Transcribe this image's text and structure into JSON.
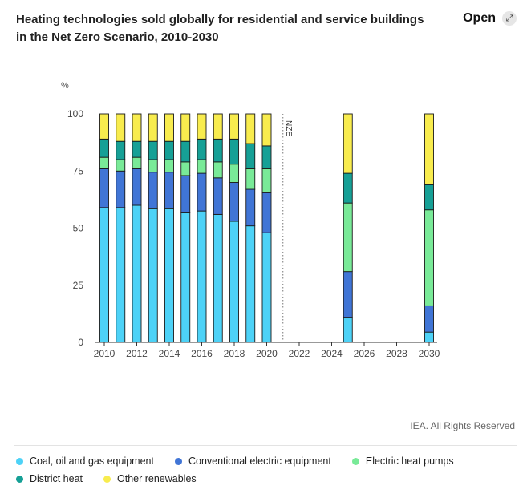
{
  "header": {
    "title": "Heating technologies sold globally for residential and service buildings in the Net Zero Scenario, 2010-2030",
    "open_label": "Open",
    "open_icon": "expand-arrow-icon"
  },
  "footer": {
    "credit": "IEA. All Rights Reserved"
  },
  "chart_data": {
    "type": "bar",
    "stacked": true,
    "title": "Heating technologies sold globally for residential and service buildings in the Net Zero Scenario, 2010-2030",
    "ylabel": "%",
    "xlabel": "",
    "ylim": [
      0,
      100
    ],
    "yticks": [
      0,
      25,
      50,
      75,
      100
    ],
    "xlim": [
      2010,
      2030
    ],
    "xticks": [
      2010,
      2012,
      2014,
      2016,
      2018,
      2020,
      2022,
      2024,
      2026,
      2028,
      2030
    ],
    "grid": false,
    "legend_position": "bottom",
    "annotation": {
      "text": "NZE",
      "x": 2021
    },
    "x": [
      2010,
      2011,
      2012,
      2013,
      2014,
      2015,
      2016,
      2017,
      2018,
      2019,
      2020,
      2025,
      2030
    ],
    "series": [
      {
        "name": "Coal, oil and gas equipment",
        "color": "#4dd2f7",
        "values": [
          59,
          59,
          60,
          58.5,
          58.5,
          57,
          57.5,
          56,
          53,
          51,
          48,
          11,
          4.5
        ]
      },
      {
        "name": "Conventional electric equipment",
        "color": "#4075d6",
        "values": [
          17,
          16,
          16,
          16,
          16,
          16,
          16.5,
          16,
          17,
          16,
          17.5,
          20,
          11.5
        ]
      },
      {
        "name": "Electric heat pumps",
        "color": "#79ea98",
        "values": [
          5,
          5,
          5,
          5.5,
          5.5,
          6,
          6,
          7,
          8,
          9,
          10.5,
          30,
          42
        ]
      },
      {
        "name": "District heat",
        "color": "#16a096",
        "values": [
          8,
          8,
          7,
          8,
          8,
          9,
          9,
          10,
          11,
          11,
          10,
          13,
          11
        ]
      },
      {
        "name": "Other renewables",
        "color": "#f8ec4e",
        "values": [
          11,
          12,
          12,
          12,
          12,
          12,
          11,
          11,
          11,
          13,
          14,
          26,
          31
        ]
      }
    ]
  }
}
